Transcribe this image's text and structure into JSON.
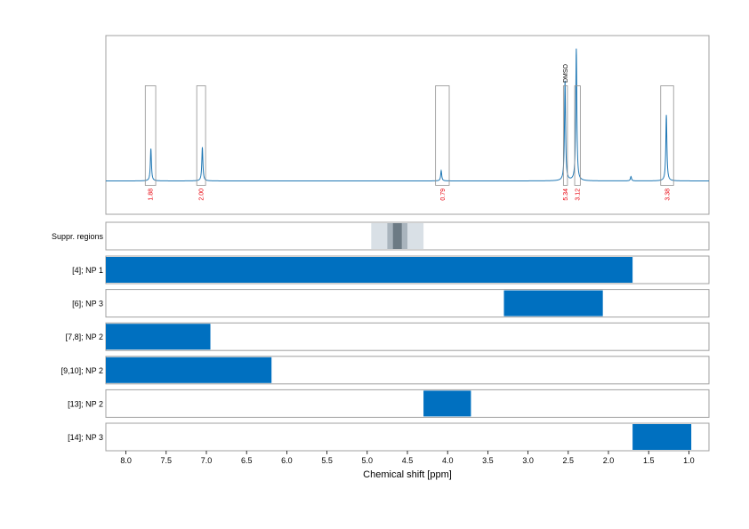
{
  "chart_data": {
    "type": "nmr-spectrum-with-region-bars",
    "x_axis": {
      "label": "Chemical shift [ppm]",
      "range": [
        8.25,
        0.75
      ],
      "reversed": true,
      "ticks": [
        8.0,
        7.5,
        7.0,
        6.5,
        6.0,
        5.5,
        5.0,
        4.5,
        4.0,
        3.5,
        3.0,
        2.5,
        2.0,
        1.5,
        1.0
      ],
      "tick_labels": [
        "8.0",
        "7.5",
        "7.0",
        "6.5",
        "6.0",
        "5.5",
        "5.0",
        "4.5",
        "4.0",
        "3.5",
        "3.0",
        "2.5",
        "2.0",
        "1.5",
        "1.0"
      ]
    },
    "spectrum": {
      "color": "#1f77b4",
      "peaks": [
        {
          "ppm": 7.69,
          "height": 0.22,
          "box": [
            7.76,
            7.63
          ],
          "integral": "1.88"
        },
        {
          "ppm": 7.05,
          "height": 0.23,
          "box": [
            7.12,
            7.01
          ],
          "integral": "2.00"
        },
        {
          "ppm": 4.08,
          "height": 0.07,
          "box": [
            4.15,
            3.98
          ],
          "integral": "0.79"
        },
        {
          "ppm": 2.54,
          "height": 0.68,
          "box": [
            2.56,
            2.51
          ],
          "integral": "5.34",
          "annotation": "DMSO"
        },
        {
          "ppm": 2.4,
          "height": 0.9,
          "box": [
            2.42,
            2.35
          ],
          "integral": "3.12"
        },
        {
          "ppm": 1.28,
          "height": 0.45,
          "box": [
            1.35,
            1.19
          ],
          "integral": "3.38"
        },
        {
          "ppm": 1.72,
          "height": 0.03
        }
      ]
    },
    "suppressed_regions": {
      "label": "Suppr. regions",
      "bands": [
        {
          "range": [
            4.95,
            4.3
          ],
          "color": "#d9e0e6"
        },
        {
          "range": [
            4.75,
            4.5
          ],
          "color": "#a9b4bd"
        },
        {
          "range": [
            4.68,
            4.57
          ],
          "color": "#6c7a84"
        }
      ]
    },
    "region_rows": [
      {
        "label": "[4]; NP 1",
        "range": [
          8.25,
          1.7
        ]
      },
      {
        "label": "[6]; NP 3",
        "range": [
          3.3,
          2.07
        ]
      },
      {
        "label": "[7,8]; NP 2",
        "range": [
          8.25,
          6.95
        ]
      },
      {
        "label": "[9,10]; NP 2",
        "range": [
          8.25,
          6.19
        ]
      },
      {
        "label": "[13]; NP 2",
        "range": [
          4.3,
          3.71
        ]
      },
      {
        "label": "[14]; NP 3",
        "range": [
          1.7,
          0.97
        ]
      }
    ],
    "bar_color": "#0070c0",
    "integral_color": "#e8000b",
    "grid": true
  }
}
